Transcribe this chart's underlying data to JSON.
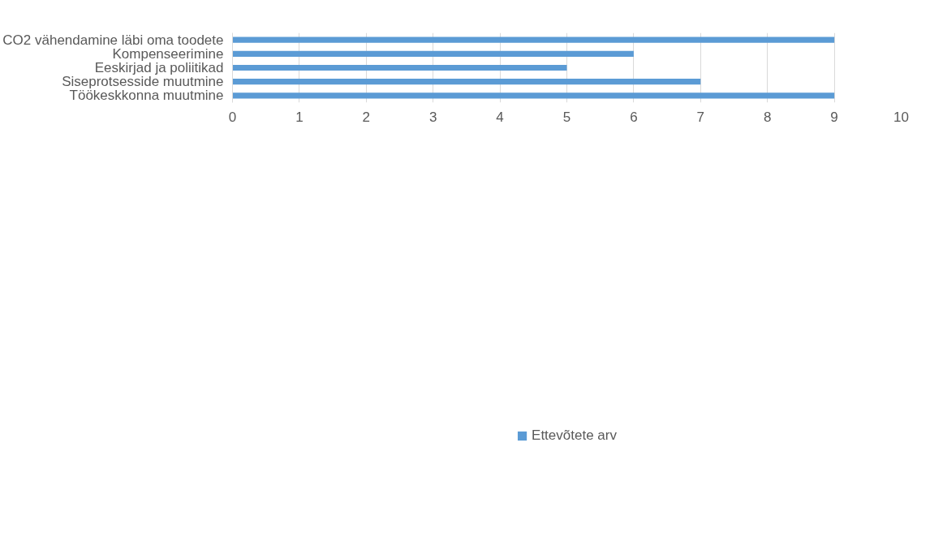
{
  "chart_data": {
    "type": "bar",
    "orientation": "horizontal",
    "categories": [
      "CO2 vähendamine läbi oma toodete",
      "Kompenseerimine",
      "Eeskirjad ja poliitikad",
      "Siseprotsesside muutmine",
      "Töökeskkonna muutmine"
    ],
    "series": [
      {
        "name": "Ettevõtete arv",
        "color": "#5b9bd5",
        "values": [
          9,
          6,
          5,
          7,
          9
        ]
      }
    ],
    "xlim": [
      0,
      10
    ],
    "xticks": [
      0,
      1,
      2,
      3,
      4,
      5,
      6,
      7,
      8,
      9,
      10
    ],
    "grid": "x",
    "legend": "bottom"
  }
}
